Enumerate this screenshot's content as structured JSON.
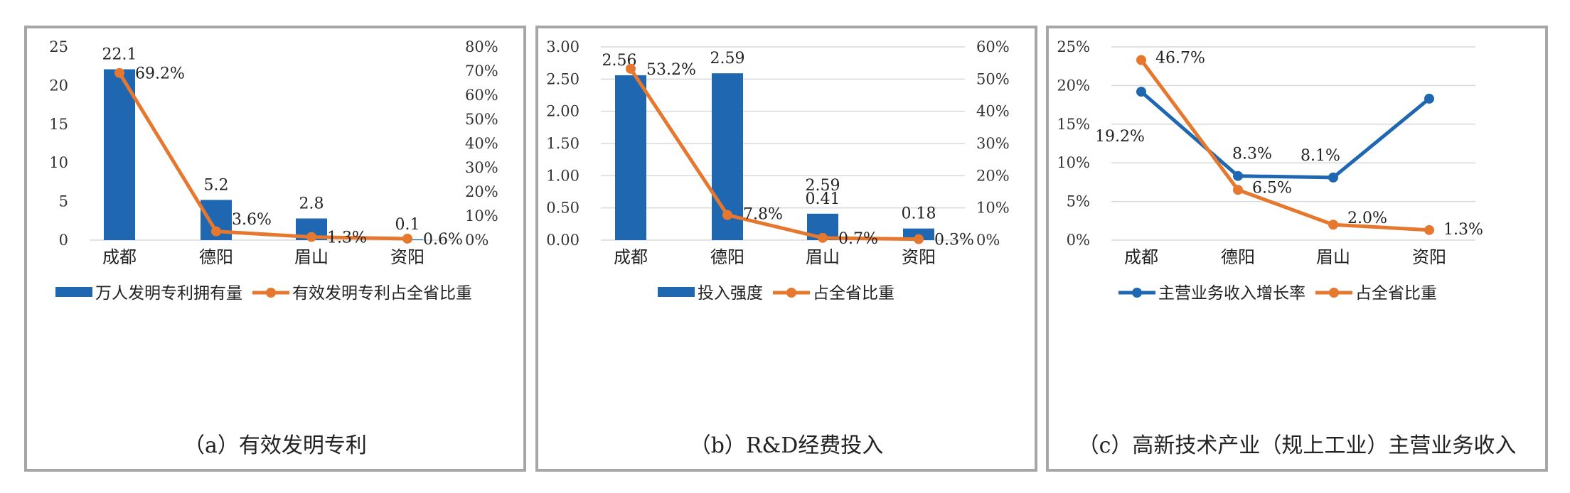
{
  "colors": {
    "blue": "#1f67b1",
    "orange": "#e5782e",
    "grid": "#d9d9d9",
    "border": "#a6a6a6"
  },
  "chart_data": [
    {
      "id": "a",
      "type": "bar+line",
      "caption": "（a）有效发明专利",
      "categories": [
        "成都",
        "德阳",
        "眉山",
        "资阳"
      ],
      "series": [
        {
          "name": "万人发明专利拥有量",
          "kind": "bar",
          "axis": "left",
          "values": [
            22.1,
            5.2,
            2.8,
            0.1
          ],
          "labels": [
            "22.1",
            "5.2",
            "2.8",
            "0.1"
          ]
        },
        {
          "name": "有效发明专利占全省比重",
          "kind": "line",
          "axis": "right",
          "values": [
            69.2,
            3.6,
            1.3,
            0.6
          ],
          "labels": [
            "69.2%",
            "3.6%",
            "1.3%",
            "0.6%"
          ]
        }
      ],
      "y_left": {
        "min": 0,
        "max": 25,
        "ticks": [
          "0",
          "5",
          "10",
          "15",
          "20",
          "25"
        ]
      },
      "y_right": {
        "min": 0,
        "max": 80,
        "ticks": [
          "0%",
          "10%",
          "20%",
          "30%",
          "40%",
          "50%",
          "60%",
          "70%",
          "80%"
        ]
      },
      "legend": "bottom",
      "grid": false
    },
    {
      "id": "b",
      "type": "bar+line",
      "caption": "（b）R&D经费投入",
      "categories": [
        "成都",
        "德阳",
        "眉山",
        "资阳"
      ],
      "series": [
        {
          "name": "投入强度",
          "kind": "bar",
          "axis": "left",
          "values": [
            2.56,
            2.59,
            0.41,
            0.18
          ],
          "labels": [
            "2.56",
            "2.59",
            "0.41",
            "0.18"
          ]
        },
        {
          "name": "占全省比重",
          "kind": "line",
          "axis": "right",
          "values": [
            53.2,
            7.8,
            0.7,
            0.3
          ],
          "labels": [
            "53.2%",
            "7.8%",
            "0.7%",
            "0.3%"
          ]
        }
      ],
      "stray_label": "2.59",
      "y_left": {
        "min": 0,
        "max": 3,
        "ticks": [
          "0.00",
          "0.50",
          "1.00",
          "1.50",
          "2.00",
          "2.50",
          "3.00"
        ]
      },
      "y_right": {
        "min": 0,
        "max": 60,
        "ticks": [
          "0%",
          "10%",
          "20%",
          "30%",
          "40%",
          "50%",
          "60%"
        ]
      },
      "legend": "bottom",
      "grid": true
    },
    {
      "id": "c",
      "type": "line",
      "caption": "（c）高新技术产业（规上工业）主营业务收入",
      "categories": [
        "成都",
        "德阳",
        "眉山",
        "资阳"
      ],
      "series": [
        {
          "name": "主营业务收入增长率",
          "kind": "line",
          "color": "blue",
          "values": [
            19.2,
            8.3,
            8.1,
            18.3
          ],
          "labels": [
            "19.2%",
            "8.3%",
            "8.1%",
            ""
          ]
        },
        {
          "name": "占全省比重",
          "kind": "line",
          "color": "orange",
          "values": [
            46.7,
            6.5,
            2.0,
            1.3
          ],
          "labels": [
            "46.7%",
            "6.5%",
            "2.0%",
            "1.3%"
          ]
        }
      ],
      "y_left": {
        "min": 0,
        "max": 25,
        "ticks": [
          "0%",
          "5%",
          "10%",
          "15%",
          "20%",
          "25%"
        ]
      },
      "legend": "bottom",
      "grid": true
    }
  ]
}
